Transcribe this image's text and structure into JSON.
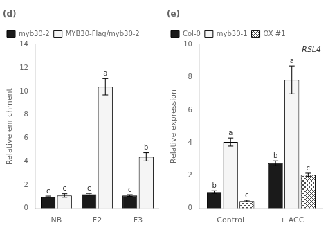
{
  "chart_data": [
    {
      "type": "bar",
      "title": "(d)",
      "categories": [
        "NB",
        "F2",
        "F3"
      ],
      "series": [
        {
          "name": "myb30-2",
          "color": "#1a1a1a",
          "values": [
            1.0,
            1.2,
            1.1
          ],
          "errors": [
            0.05,
            0.08,
            0.07
          ]
        },
        {
          "name": "MYB30-Flag/myb30-2",
          "color": "#f5f5f5",
          "values": [
            1.1,
            10.4,
            4.4
          ],
          "errors": [
            0.15,
            0.7,
            0.35
          ]
        }
      ],
      "ylabel": "Relative enrichment",
      "ylim": [
        0,
        14
      ],
      "yticks": [
        0,
        2,
        4,
        6,
        8,
        10,
        12,
        14
      ],
      "grid": false,
      "legend": "upper left",
      "annotations": [
        {
          "category": "NB",
          "series": "myb30-2",
          "text": "c"
        },
        {
          "category": "F2",
          "series": "myb30-2",
          "text": "c"
        },
        {
          "category": "F3",
          "series": "myb30-2",
          "text": "c"
        },
        {
          "category": "NB",
          "series": "MYB30-Flag/myb30-2",
          "text": "c"
        },
        {
          "category": "F2",
          "series": "MYB30-Flag/myb30-2",
          "text": "a"
        },
        {
          "category": "F3",
          "series": "MYB30-Flag/myb30-2",
          "text": "b"
        }
      ]
    },
    {
      "type": "bar",
      "title": "(e)",
      "categories": [
        "Control",
        "+ ACC"
      ],
      "series": [
        {
          "name": "Col-0",
          "color": "#1a1a1a",
          "values": [
            1.0,
            2.75
          ],
          "errors": [
            0.08,
            0.15
          ]
        },
        {
          "name": "myb30-1",
          "color": "#f5f5f5",
          "values": [
            4.05,
            7.85
          ],
          "errors": [
            0.25,
            0.85
          ]
        },
        {
          "name": "OX #1",
          "color": "#ffffff",
          "marker": "x",
          "values": [
            0.45,
            2.05
          ],
          "errors": [
            0.05,
            0.1
          ]
        }
      ],
      "ylabel": "Relative expression",
      "ylim": [
        0,
        10
      ],
      "yticks": [
        0,
        2,
        4,
        6,
        8,
        10
      ],
      "grid": false,
      "legend": "upper left",
      "annotations": [
        {
          "text": "RSL4"
        },
        {
          "category": "Control",
          "series": "Col-0",
          "text": "b"
        },
        {
          "category": "+ ACC",
          "series": "Col-0",
          "text": "b"
        },
        {
          "category": "Control",
          "series": "myb30-1",
          "text": "a"
        },
        {
          "category": "+ ACC",
          "series": "myb30-1",
          "text": "a"
        },
        {
          "category": "Control",
          "series": "OX #1",
          "text": "c"
        },
        {
          "category": "+ ACC",
          "series": "OX #1",
          "text": "c"
        }
      ]
    }
  ]
}
